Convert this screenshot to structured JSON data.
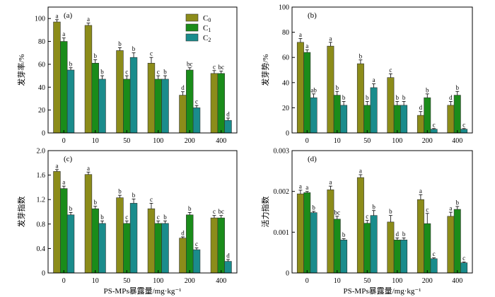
{
  "colors": {
    "C0": "#8c8c1a",
    "C1": "#1a8c1a",
    "C2": "#1a8c8c"
  },
  "legend": [
    "C0",
    "C1",
    "C2"
  ],
  "legend_subscripts": [
    "0",
    "1",
    "2"
  ],
  "chart_data": [
    {
      "type": "bar",
      "panel": "(a)",
      "ylabel": "发芽率/%",
      "xlabel": "PS-MPs暴露量/mg·kg⁻¹",
      "categories": [
        "0",
        "10",
        "50",
        "100",
        "200",
        "400"
      ],
      "ylim": [
        0,
        110
      ],
      "yticks": [
        "0",
        "20",
        "40",
        "60",
        "80",
        "100"
      ],
      "ytick_values": [
        0,
        20,
        40,
        60,
        80,
        100
      ],
      "series": [
        {
          "name": "C0",
          "values": [
            97,
            94,
            72,
            61,
            33,
            52
          ],
          "errors": [
            2,
            2,
            2.5,
            5,
            3,
            2.5
          ],
          "labels": [
            "a",
            "a",
            "b",
            "c",
            "d",
            "c"
          ]
        },
        {
          "name": "C1",
          "values": [
            80,
            61,
            47,
            47,
            55,
            52
          ],
          "errors": [
            3,
            3,
            3,
            3,
            2,
            2
          ],
          "labels": [
            "a",
            "b",
            "c",
            "c",
            "bc",
            "bc"
          ]
        },
        {
          "name": "C2",
          "values": [
            55,
            47,
            66,
            47,
            22,
            11
          ],
          "errors": [
            2,
            3,
            4,
            3,
            2,
            2
          ],
          "labels": [
            "b",
            "b",
            "b",
            "b",
            "c",
            "d"
          ]
        }
      ]
    },
    {
      "type": "bar",
      "panel": "(b)",
      "ylabel": "发芽势/%",
      "xlabel": "PS-MPs暴露量/mg·kg⁻¹",
      "categories": [
        "0",
        "10",
        "50",
        "100",
        "200",
        "400"
      ],
      "ylim": [
        0,
        100
      ],
      "yticks": [
        "0",
        "20",
        "40",
        "60",
        "80",
        "100"
      ],
      "ytick_values": [
        0,
        20,
        40,
        60,
        80,
        100
      ],
      "series": [
        {
          "name": "C0",
          "values": [
            72,
            69,
            55,
            44,
            14,
            22
          ],
          "errors": [
            3,
            3,
            3,
            3,
            3,
            3
          ],
          "labels": [
            "a",
            "a",
            "b",
            "c",
            "d",
            "d"
          ]
        },
        {
          "name": "C1",
          "values": [
            64,
            30,
            22,
            22,
            28,
            30
          ],
          "errors": [
            2,
            3,
            3,
            3,
            3,
            3
          ],
          "labels": [
            "a",
            "b",
            "b",
            "b",
            "b",
            "b"
          ]
        },
        {
          "name": "C2",
          "values": [
            28,
            22,
            36,
            22,
            3,
            3
          ],
          "errors": [
            3,
            3,
            3,
            3,
            0.5,
            0.5
          ],
          "labels": [
            "ab",
            "b",
            "a",
            "b",
            "c",
            "c"
          ]
        }
      ]
    },
    {
      "type": "bar",
      "panel": "(c)",
      "ylabel": "发芽指数",
      "xlabel": "PS-MPs暴露量/mg·kg⁻¹",
      "categories": [
        "0",
        "10",
        "50",
        "100",
        "200",
        "400"
      ],
      "ylim": [
        0,
        2.0
      ],
      "yticks": [
        "0",
        "0.4",
        "0.8",
        "1.2",
        "1.6",
        "2.0"
      ],
      "ytick_values": [
        0,
        0.4,
        0.8,
        1.2,
        1.6,
        2.0
      ],
      "series": [
        {
          "name": "C0",
          "values": [
            1.66,
            1.61,
            1.23,
            1.05,
            0.57,
            0.9
          ],
          "errors": [
            0.03,
            0.04,
            0.04,
            0.09,
            0.02,
            0.04
          ],
          "labels": [
            "a",
            "a",
            "b",
            "c",
            "d",
            "c"
          ]
        },
        {
          "name": "C1",
          "values": [
            1.38,
            1.05,
            0.81,
            0.81,
            0.95,
            0.9
          ],
          "errors": [
            0.04,
            0.04,
            0.04,
            0.04,
            0.04,
            0.04
          ],
          "labels": [
            "a",
            "b",
            "c",
            "c",
            "b",
            "bc"
          ]
        },
        {
          "name": "C2",
          "values": [
            0.95,
            0.81,
            1.14,
            0.81,
            0.38,
            0.19
          ],
          "errors": [
            0.04,
            0.04,
            0.07,
            0.04,
            0.03,
            0.03
          ],
          "labels": [
            "b",
            "b",
            "b",
            "b",
            "c",
            "d"
          ]
        }
      ]
    },
    {
      "type": "bar",
      "panel": "(d)",
      "ylabel": "活力指数",
      "xlabel": "PS-MPs暴露量/mg·kg⁻¹",
      "categories": [
        "0",
        "10",
        "50",
        "100",
        "200",
        "400"
      ],
      "ylim": [
        0,
        0.003
      ],
      "yticks": [
        "0",
        "0.001",
        "0.002",
        "0.003"
      ],
      "ytick_values": [
        0,
        0.001,
        0.002,
        0.003
      ],
      "series": [
        {
          "name": "C0",
          "values": [
            0.00194,
            0.00204,
            0.00234,
            0.00125,
            0.0018,
            0.00139
          ],
          "errors": [
            9e-05,
            9e-05,
            7e-05,
            0.00016,
            0.00012,
            0.0001
          ],
          "labels": [
            "a",
            "a",
            "a",
            "b",
            "a",
            "a"
          ]
        },
        {
          "name": "C1",
          "values": [
            0.00197,
            0.00132,
            0.00122,
            0.00081,
            0.00121,
            0.00156
          ],
          "errors": [
            3e-05,
            7e-05,
            7e-05,
            5e-05,
            0.00025,
            7e-05
          ],
          "labels": [
            "a",
            "bc",
            "c",
            "d",
            "c",
            "b"
          ]
        },
        {
          "name": "C2",
          "values": [
            0.00148,
            0.00081,
            0.00141,
            0.00081,
            0.00035,
            0.00025
          ],
          "errors": [
            3e-05,
            3e-05,
            0.00012,
            5e-05,
            2e-05,
            2e-05
          ],
          "labels": [
            "b",
            "b",
            "b",
            "b",
            "c",
            "c"
          ]
        }
      ]
    }
  ]
}
